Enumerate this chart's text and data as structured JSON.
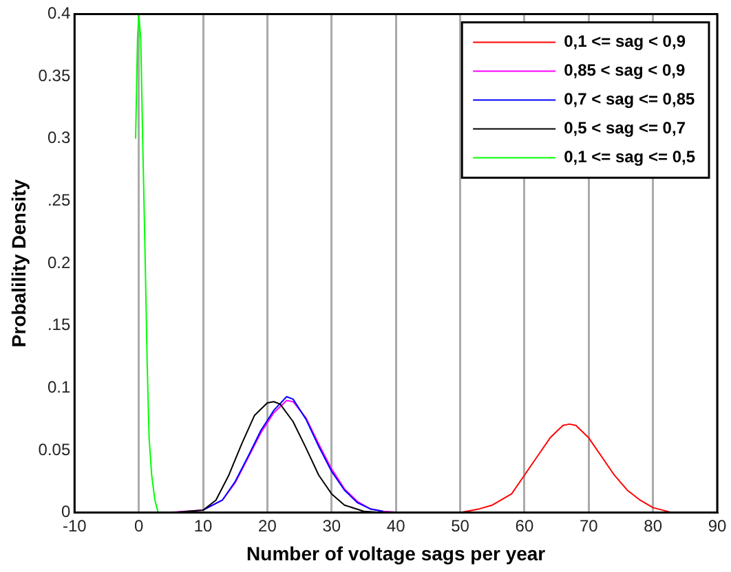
{
  "chart_data": {
    "type": "line",
    "xlabel": "Number of voltage sags per year",
    "ylabel": "Probalility Density",
    "xlim": [
      -10,
      90
    ],
    "xticks": [
      -10,
      0,
      10,
      20,
      30,
      40,
      50,
      60,
      70,
      80,
      90
    ],
    "ylim": [
      0,
      0.4
    ],
    "yticks": [
      0,
      0.05,
      0.1,
      {
        "value": 0.15,
        "label": ".15"
      },
      0.2,
      {
        "value": 0.25,
        "label": ".25"
      },
      0.3,
      0.35,
      0.4
    ],
    "grid": "x",
    "legend": "top right",
    "marker": "none",
    "line_style": "solid",
    "series": [
      {
        "name": "0,1 <= sag < 0,9",
        "color": "#ff0000",
        "x": [
          50,
          53,
          55,
          58,
          60,
          62,
          64,
          66,
          67,
          68,
          70,
          72,
          74,
          76,
          78,
          80,
          83
        ],
        "values": [
          0,
          0.003,
          0.006,
          0.015,
          0.03,
          0.045,
          0.06,
          0.07,
          0.071,
          0.07,
          0.06,
          0.045,
          0.03,
          0.018,
          0.01,
          0.004,
          0
        ]
      },
      {
        "name": "0,85 < sag < 0,9",
        "color": "#ff00ff",
        "x": [
          4,
          10,
          13,
          15,
          17,
          19,
          21,
          23,
          24,
          26,
          28,
          30,
          32,
          34,
          36,
          38,
          41
        ],
        "values": [
          0,
          0.002,
          0.01,
          0.024,
          0.044,
          0.064,
          0.08,
          0.09,
          0.089,
          0.076,
          0.055,
          0.035,
          0.019,
          0.009,
          0.003,
          0.001,
          0
        ]
      },
      {
        "name": "0,7 < sag <= 0,85",
        "color": "#0000ff",
        "x": [
          10,
          13,
          15,
          17,
          19,
          21,
          23,
          24,
          26,
          28,
          30,
          32,
          34,
          36,
          38
        ],
        "values": [
          0.002,
          0.01,
          0.025,
          0.045,
          0.066,
          0.082,
          0.093,
          0.091,
          0.075,
          0.053,
          0.033,
          0.018,
          0.008,
          0.003,
          0.001
        ]
      },
      {
        "name": "0,5 < sag <= 0,7",
        "color": "#000000",
        "x": [
          5,
          10,
          12,
          14,
          16,
          18,
          20,
          21,
          22,
          24,
          26,
          28,
          30,
          32,
          35,
          38
        ],
        "values": [
          0,
          0.002,
          0.01,
          0.03,
          0.055,
          0.078,
          0.088,
          0.089,
          0.087,
          0.073,
          0.052,
          0.03,
          0.015,
          0.006,
          0.001,
          0
        ]
      },
      {
        "name": "0,1 <= sag <= 0,5",
        "color": "#00ff00",
        "x": [
          -0.5,
          -0.2,
          0,
          0.3,
          0.6,
          1,
          1.3,
          1.6,
          2,
          2.5,
          3
        ],
        "values": [
          0.3,
          0.38,
          0.4,
          0.38,
          0.3,
          0.2,
          0.12,
          0.06,
          0.03,
          0.01,
          0
        ]
      }
    ]
  }
}
